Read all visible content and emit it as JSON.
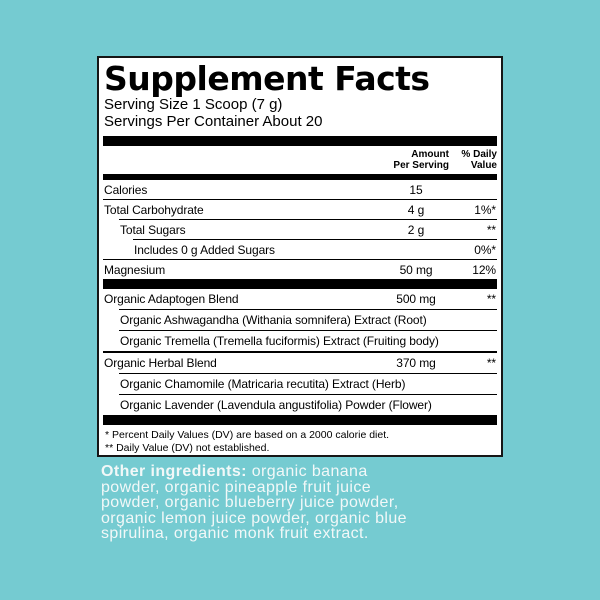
{
  "colors": {
    "background": "#75cbd1",
    "panel_background": "#ffffff",
    "panel_border": "#161616",
    "text": "#000000",
    "other_ingredients_text": "#f2f8f8"
  },
  "panel": {
    "title": "Supplement Facts",
    "serving_size": "Serving Size 1 Scoop (7 g)",
    "servings_per_container": "Servings Per Container About 20",
    "headers": {
      "amount_line1": "Amount",
      "amount_line2": "Per Serving",
      "dv_line1": "% Daily",
      "dv_line2": "Value"
    },
    "rows": [
      {
        "label": "Calories",
        "amount": "15",
        "dv": ""
      },
      {
        "label": "Total Carbohydrate",
        "amount": "4 g",
        "dv": "1%*"
      },
      {
        "label": "Total Sugars",
        "amount": "2 g",
        "dv": "**"
      },
      {
        "label": "Includes 0 g Added Sugars",
        "amount": "",
        "dv": "0%*"
      },
      {
        "label": "Magnesium",
        "amount": "50 mg",
        "dv": "12%"
      },
      {
        "label": "Organic Adaptogen Blend",
        "amount": "500 mg",
        "dv": "**"
      },
      {
        "label": "Organic Ashwagandha (Withania somnifera) Extract (Root)"
      },
      {
        "label": "Organic Tremella (Tremella fuciformis) Extract (Fruiting body)"
      },
      {
        "label": "Organic Herbal Blend",
        "amount": "370 mg",
        "dv": "**"
      },
      {
        "label": "Organic Chamomile (Matricaria recutita) Extract (Herb)"
      },
      {
        "label": "Organic Lavender (Lavendula angustifolia) Powder (Flower)"
      }
    ],
    "footnotes": [
      "* Percent Daily Values (DV) are based on a 2000 calorie diet.",
      "** Daily Value (DV) not established."
    ]
  },
  "other_ingredients": {
    "label": "Other ingredients:",
    "line1_rest": " organic banana",
    "lines": [
      "powder, organic pineapple fruit juice",
      "powder, organic blueberry juice powder,",
      "organic lemon juice powder, organic blue",
      "spirulina, organic monk fruit extract."
    ]
  }
}
